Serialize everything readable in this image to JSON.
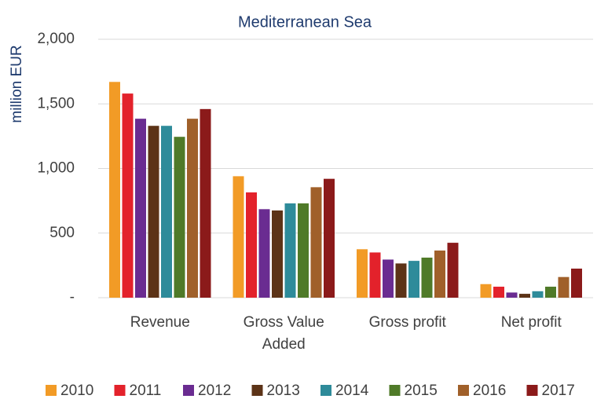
{
  "chart_data": {
    "type": "bar",
    "title": "Mediterranean Sea",
    "y_label": "million EUR",
    "categories": [
      "Revenue",
      "Gross Value Added",
      "Gross profit",
      "Net profit"
    ],
    "series": [
      {
        "name": "2010",
        "color": "#f29b26",
        "values": [
          1670,
          940,
          375,
          105
        ]
      },
      {
        "name": "2011",
        "color": "#e3222b",
        "values": [
          1580,
          815,
          350,
          85
        ]
      },
      {
        "name": "2012",
        "color": "#6a2c91",
        "values": [
          1385,
          685,
          295,
          40
        ]
      },
      {
        "name": "2013",
        "color": "#5c3317",
        "values": [
          1330,
          675,
          265,
          30
        ]
      },
      {
        "name": "2014",
        "color": "#2e8b9a",
        "values": [
          1330,
          730,
          285,
          50
        ]
      },
      {
        "name": "2015",
        "color": "#4f7a28",
        "values": [
          1245,
          730,
          310,
          85
        ]
      },
      {
        "name": "2016",
        "color": "#a0602a",
        "values": [
          1385,
          855,
          365,
          160
        ]
      },
      {
        "name": "2017",
        "color": "#8b1a1a",
        "values": [
          1460,
          920,
          425,
          225
        ]
      }
    ],
    "ylim": [
      0,
      2000
    ],
    "yticks": [
      {
        "value": 0,
        "label": "-"
      },
      500,
      {
        "value": 1000,
        "label": "1,000"
      },
      {
        "value": 1500,
        "label": "1,500"
      },
      {
        "value": 2000,
        "label": "2,000"
      }
    ],
    "grid": true,
    "legend": "bottom"
  }
}
